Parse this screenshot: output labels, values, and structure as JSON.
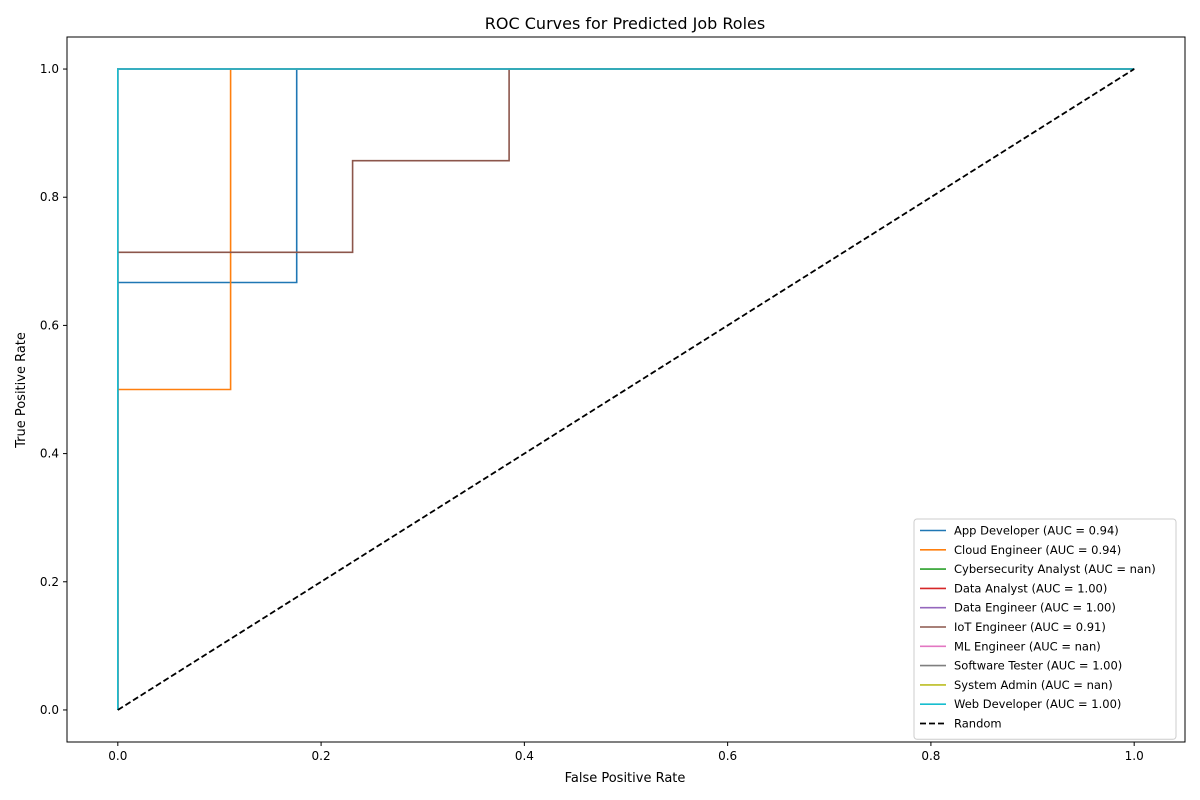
{
  "chart_data": {
    "type": "line",
    "title": "ROC Curves for Predicted Job Roles",
    "xlabel": "False Positive Rate",
    "ylabel": "True Positive Rate",
    "xlim": [
      -0.05,
      1.05
    ],
    "ylim": [
      -0.05,
      1.05
    ],
    "xticks": [
      0.0,
      0.2,
      0.4,
      0.6,
      0.8,
      1.0
    ],
    "yticks": [
      0.0,
      0.2,
      0.4,
      0.6,
      0.8,
      1.0
    ],
    "xtick_labels": [
      "0.0",
      "0.2",
      "0.4",
      "0.6",
      "0.8",
      "1.0"
    ],
    "ytick_labels": [
      "0.0",
      "0.2",
      "0.4",
      "0.6",
      "0.8",
      "1.0"
    ],
    "grid": false,
    "legend_position": "lower-right",
    "series": [
      {
        "name": "App Developer (AUC = 0.94)",
        "color": "#1f77b4",
        "dash": false,
        "x": [
          0.0,
          0.0,
          0.176,
          0.176,
          1.0
        ],
        "y": [
          0.0,
          0.667,
          0.667,
          1.0,
          1.0
        ]
      },
      {
        "name": "Cloud Engineer (AUC = 0.94)",
        "color": "#ff7f0e",
        "dash": false,
        "x": [
          0.0,
          0.0,
          0.111,
          0.111,
          1.0
        ],
        "y": [
          0.0,
          0.5,
          0.5,
          1.0,
          1.0
        ]
      },
      {
        "name": "Cybersecurity Analyst (AUC = nan)",
        "color": "#2ca02c",
        "dash": false,
        "x": [],
        "y": []
      },
      {
        "name": "Data Analyst (AUC = 1.00)",
        "color": "#d62728",
        "dash": false,
        "x": [
          0.0,
          0.0,
          1.0
        ],
        "y": [
          0.0,
          1.0,
          1.0
        ]
      },
      {
        "name": "Data Engineer (AUC = 1.00)",
        "color": "#9467bd",
        "dash": false,
        "x": [
          0.0,
          0.0,
          1.0
        ],
        "y": [
          0.0,
          1.0,
          1.0
        ]
      },
      {
        "name": "IoT Engineer (AUC = 0.91)",
        "color": "#8c564b",
        "dash": false,
        "x": [
          0.0,
          0.0,
          0.231,
          0.231,
          0.385,
          0.385,
          1.0
        ],
        "y": [
          0.0,
          0.714,
          0.714,
          0.857,
          0.857,
          1.0,
          1.0
        ]
      },
      {
        "name": "ML Engineer (AUC = nan)",
        "color": "#e377c2",
        "dash": false,
        "x": [],
        "y": []
      },
      {
        "name": "Software Tester (AUC = 1.00)",
        "color": "#7f7f7f",
        "dash": false,
        "x": [
          0.0,
          0.0,
          1.0
        ],
        "y": [
          0.0,
          1.0,
          1.0
        ]
      },
      {
        "name": "System Admin (AUC = nan)",
        "color": "#bcbd22",
        "dash": false,
        "x": [],
        "y": []
      },
      {
        "name": "Web Developer (AUC = 1.00)",
        "color": "#17becf",
        "dash": false,
        "x": [
          0.0,
          0.0,
          1.0
        ],
        "y": [
          0.0,
          1.0,
          1.0
        ]
      },
      {
        "name": "Random",
        "color": "#000000",
        "dash": true,
        "x": [
          0.0,
          1.0
        ],
        "y": [
          0.0,
          1.0
        ]
      }
    ]
  }
}
